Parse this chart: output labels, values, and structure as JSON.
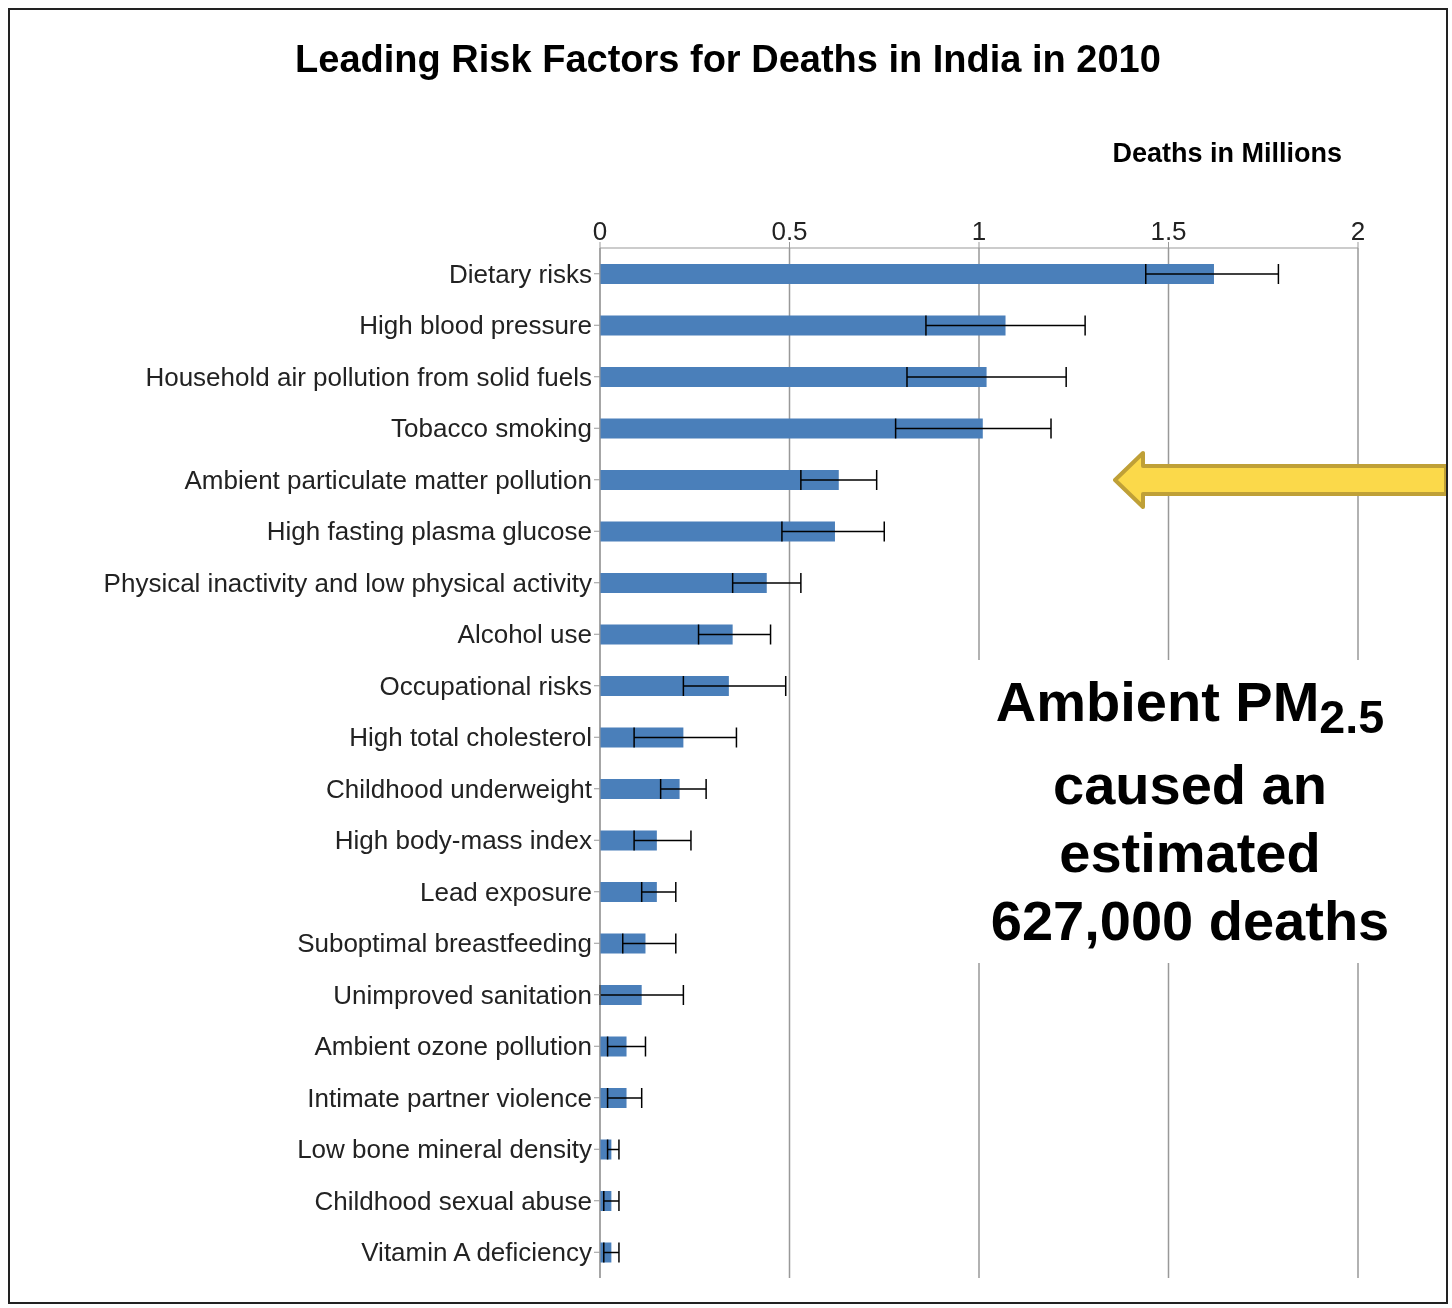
{
  "chart_data": {
    "type": "bar",
    "orientation": "horizontal",
    "title": "Leading Risk Factors for Deaths in India in 2010",
    "xlabel": "Deaths in Millions",
    "categories": [
      "Dietary risks",
      "High blood pressure",
      "Household air pollution from solid fuels",
      "Tobacco smoking",
      "Ambient particulate matter pollution",
      "High fasting plasma glucose",
      "Physical inactivity and low physical activity",
      "Alcohol use",
      "Occupational risks",
      "High total cholesterol",
      "Childhood underweight",
      "High body-mass index",
      "Lead exposure",
      "Suboptimal breastfeeding",
      "Unimproved sanitation",
      "Ambient ozone pollution",
      "Intimate partner violence",
      "Low bone mineral density",
      "Childhood sexual abuse",
      "Vitamin A deficiency"
    ],
    "values": [
      1.62,
      1.07,
      1.02,
      1.01,
      0.63,
      0.62,
      0.44,
      0.35,
      0.34,
      0.22,
      0.21,
      0.15,
      0.15,
      0.12,
      0.11,
      0.07,
      0.07,
      0.03,
      0.03,
      0.03
    ],
    "errors": [
      [
        1.44,
        1.79
      ],
      [
        0.86,
        1.28
      ],
      [
        0.81,
        1.23
      ],
      [
        0.78,
        1.19
      ],
      [
        0.53,
        0.73
      ],
      [
        0.48,
        0.75
      ],
      [
        0.35,
        0.53
      ],
      [
        0.26,
        0.45
      ],
      [
        0.22,
        0.49
      ],
      [
        0.09,
        0.36
      ],
      [
        0.16,
        0.28
      ],
      [
        0.09,
        0.24
      ],
      [
        0.11,
        0.2
      ],
      [
        0.06,
        0.2
      ],
      [
        0.0,
        0.22
      ],
      [
        0.02,
        0.12
      ],
      [
        0.02,
        0.11
      ],
      [
        0.02,
        0.05
      ],
      [
        0.01,
        0.05
      ],
      [
        0.01,
        0.05
      ]
    ],
    "color": "#4a7fba",
    "xlim": [
      0,
      2
    ],
    "xticks": [
      0,
      0.5,
      1,
      1.5,
      2
    ],
    "grid": "x",
    "annotations": [
      "Ambient PM$_{2.5}$ caused an estimated 627,000 deaths"
    ]
  }
}
